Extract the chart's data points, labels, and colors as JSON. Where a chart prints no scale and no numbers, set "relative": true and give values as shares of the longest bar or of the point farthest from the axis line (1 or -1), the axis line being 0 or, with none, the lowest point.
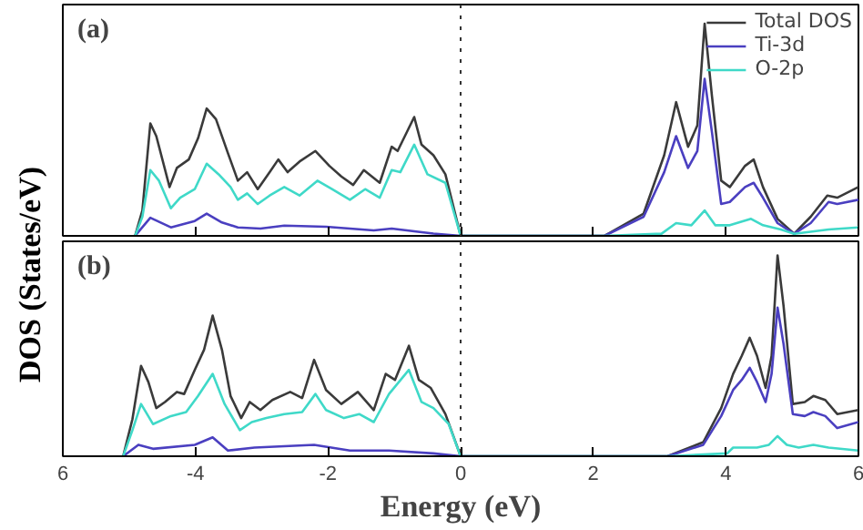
{
  "chart_data": [
    {
      "type": "line",
      "relative": true,
      "annotations": [
        "(a)"
      ],
      "ylabel": "DOS (States/eV)",
      "xlim": [
        -6,
        6
      ],
      "xticks": [
        {
          "value": -6,
          "label": null
        },
        {
          "value": -4,
          "label": null
        },
        {
          "value": -2,
          "label": null
        },
        {
          "value": 0,
          "label": null
        },
        {
          "value": 2,
          "label": null
        },
        {
          "value": 4,
          "label": null
        },
        {
          "value": 6,
          "label": null
        }
      ],
      "tick_labels": false,
      "grid": false,
      "legend": "top right",
      "line_style": "solid",
      "marker": "none",
      "ref_lines": [
        {
          "axis": "x",
          "value": 0,
          "line_style": "dotted",
          "color": "#333333"
        }
      ],
      "series": [
        {
          "name": "Total DOS",
          "color": "#3a3a3a",
          "x": [
            -4.91,
            -4.8,
            -4.68,
            -4.59,
            -4.39,
            -4.28,
            -4.1,
            -3.96,
            -3.83,
            -3.69,
            -3.51,
            -3.36,
            -3.22,
            -3.06,
            -2.88,
            -2.75,
            -2.61,
            -2.43,
            -2.19,
            -1.98,
            -1.8,
            -1.62,
            -1.46,
            -1.22,
            -1.04,
            -0.95,
            -0.7,
            -0.59,
            -0.41,
            -0.23,
            0,
            2.17,
            2.76,
            3.07,
            3.25,
            3.43,
            3.57,
            3.68,
            3.79,
            3.93,
            4.06,
            4.29,
            4.42,
            4.56,
            4.78,
            5.03,
            5.28,
            5.53,
            5.68,
            6.0
          ],
          "values": [
            0,
            0.12,
            0.53,
            0.47,
            0.23,
            0.32,
            0.36,
            0.46,
            0.6,
            0.55,
            0.39,
            0.26,
            0.3,
            0.22,
            0.3,
            0.36,
            0.3,
            0.35,
            0.4,
            0.33,
            0.28,
            0.24,
            0.31,
            0.25,
            0.42,
            0.4,
            0.56,
            0.43,
            0.38,
            0.29,
            0,
            0,
            0.105,
            0.38,
            0.63,
            0.42,
            0.52,
            1.0,
            0.66,
            0.26,
            0.23,
            0.33,
            0.36,
            0.23,
            0.08,
            0.01,
            0.09,
            0.19,
            0.18,
            0.23
          ]
        },
        {
          "name": "Ti-3d",
          "color": "#4a3fc0",
          "x": [
            -4.91,
            -4.68,
            -4.37,
            -4.01,
            -3.83,
            -3.6,
            -3.36,
            -3.02,
            -2.66,
            -2.03,
            -1.31,
            -1.04,
            -0.41,
            0,
            2.17,
            2.76,
            3.07,
            3.25,
            3.43,
            3.57,
            3.68,
            3.79,
            3.93,
            4.06,
            4.29,
            4.42,
            4.56,
            4.78,
            5.03,
            5.28,
            5.55,
            5.68,
            6.0
          ],
          "values": [
            0,
            0.085,
            0.04,
            0.07,
            0.105,
            0.063,
            0.04,
            0.034,
            0.048,
            0.043,
            0.026,
            0.034,
            0.011,
            0,
            0,
            0.09,
            0.3,
            0.47,
            0.32,
            0.4,
            0.74,
            0.49,
            0.15,
            0.16,
            0.23,
            0.25,
            0.18,
            0.06,
            0.01,
            0.06,
            0.16,
            0.15,
            0.17
          ]
        },
        {
          "name": "O-2p",
          "color": "#3fd9c8",
          "x": [
            -4.91,
            -4.8,
            -4.68,
            -4.55,
            -4.37,
            -4.23,
            -4.01,
            -3.83,
            -3.65,
            -3.47,
            -3.36,
            -3.22,
            -3.06,
            -2.88,
            -2.66,
            -2.43,
            -2.16,
            -1.94,
            -1.67,
            -1.44,
            -1.22,
            -1.04,
            -0.91,
            -0.7,
            -0.5,
            -0.23,
            0,
            2.17,
            3.03,
            3.25,
            3.48,
            3.68,
            3.84,
            4.06,
            4.38,
            4.56,
            4.83,
            5.03,
            5.55,
            6.0
          ],
          "values": [
            0,
            0.09,
            0.31,
            0.26,
            0.13,
            0.18,
            0.22,
            0.34,
            0.29,
            0.23,
            0.17,
            0.2,
            0.15,
            0.19,
            0.23,
            0.19,
            0.26,
            0.22,
            0.17,
            0.22,
            0.18,
            0.31,
            0.3,
            0.43,
            0.29,
            0.25,
            0,
            0,
            0.01,
            0.06,
            0.05,
            0.12,
            0.05,
            0.05,
            0.08,
            0.05,
            0.03,
            0.01,
            0.03,
            0.04
          ]
        }
      ]
    },
    {
      "type": "line",
      "relative": true,
      "annotations": [
        "(b)"
      ],
      "xlabel": "Energy (eV)",
      "xlim": [
        -6,
        6
      ],
      "xticks": [
        {
          "value": -6,
          "label": "6"
        },
        -4,
        -2,
        0,
        2,
        4,
        6
      ],
      "tick_labels": "x",
      "grid": false,
      "legend": false,
      "line_style": "solid",
      "marker": "none",
      "ref_lines": [
        {
          "axis": "x",
          "value": 0,
          "line_style": "dotted",
          "color": "#333333"
        }
      ],
      "series": [
        {
          "color": "#3a3a3a",
          "x": [
            -5.09,
            -4.95,
            -4.82,
            -4.71,
            -4.59,
            -4.46,
            -4.28,
            -4.17,
            -4.01,
            -3.87,
            -3.74,
            -3.6,
            -3.47,
            -3.31,
            -3.18,
            -3.02,
            -2.84,
            -2.57,
            -2.39,
            -2.21,
            -2.03,
            -1.8,
            -1.55,
            -1.31,
            -1.13,
            -0.99,
            -0.78,
            -0.63,
            -0.45,
            -0.23,
            0,
            3.12,
            3.66,
            3.93,
            4.11,
            4.24,
            4.36,
            4.47,
            4.6,
            4.69,
            4.78,
            4.87,
            5.01,
            5.19,
            5.32,
            5.5,
            5.68,
            6.0
          ],
          "values": [
            0,
            0.185,
            0.45,
            0.37,
            0.24,
            0.27,
            0.32,
            0.31,
            0.43,
            0.53,
            0.7,
            0.53,
            0.3,
            0.19,
            0.27,
            0.23,
            0.28,
            0.32,
            0.29,
            0.48,
            0.33,
            0.26,
            0.32,
            0.23,
            0.41,
            0.38,
            0.55,
            0.38,
            0.34,
            0.21,
            0,
            0,
            0.07,
            0.24,
            0.41,
            0.5,
            0.59,
            0.5,
            0.34,
            0.5,
            1.0,
            0.75,
            0.26,
            0.27,
            0.3,
            0.28,
            0.21,
            0.23
          ]
        },
        {
          "color": "#4a3fc0",
          "x": [
            -5.09,
            -4.86,
            -4.64,
            -4.01,
            -3.74,
            -3.51,
            -3.11,
            -2.21,
            -1.67,
            -1.08,
            -0.41,
            0,
            3.12,
            3.66,
            3.93,
            4.11,
            4.24,
            4.36,
            4.47,
            4.6,
            4.69,
            4.78,
            4.87,
            5.01,
            5.19,
            5.32,
            5.5,
            5.68,
            6.0
          ],
          "values": [
            0,
            0.057,
            0.037,
            0.057,
            0.094,
            0.028,
            0.043,
            0.057,
            0.028,
            0.028,
            0.014,
            0,
            0,
            0.057,
            0.2,
            0.33,
            0.38,
            0.44,
            0.37,
            0.27,
            0.41,
            0.74,
            0.56,
            0.21,
            0.2,
            0.22,
            0.2,
            0.14,
            0.17
          ]
        },
        {
          "color": "#3fd9c8",
          "x": [
            -5.09,
            -4.95,
            -4.82,
            -4.64,
            -4.37,
            -4.14,
            -3.96,
            -3.74,
            -3.56,
            -3.33,
            -3.15,
            -2.93,
            -2.66,
            -2.39,
            -2.19,
            -2.03,
            -1.76,
            -1.53,
            -1.31,
            -1.08,
            -0.78,
            -0.59,
            -0.41,
            -0.18,
            0,
            3.12,
            4.02,
            4.11,
            4.47,
            4.65,
            4.78,
            4.92,
            5.1,
            5.32,
            5.55,
            6.0
          ],
          "values": [
            0,
            0.13,
            0.26,
            0.16,
            0.2,
            0.22,
            0.3,
            0.41,
            0.26,
            0.13,
            0.17,
            0.19,
            0.21,
            0.22,
            0.31,
            0.23,
            0.19,
            0.21,
            0.17,
            0.31,
            0.43,
            0.27,
            0.24,
            0.16,
            0,
            0,
            0.014,
            0.043,
            0.043,
            0.057,
            0.1,
            0.057,
            0.043,
            0.057,
            0.043,
            0.028
          ]
        }
      ]
    }
  ]
}
